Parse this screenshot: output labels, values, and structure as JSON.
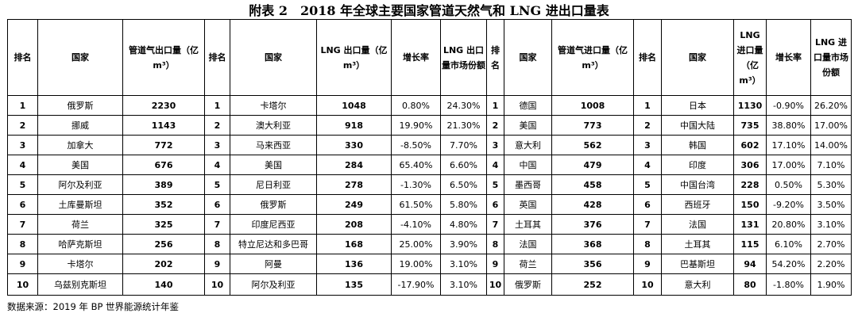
{
  "title": "附表 2　2018 年全球主要国家管道天然气和 LNG 进出口量表",
  "headers": {
    "rank": "排名",
    "country": "国家",
    "pipe_export": "管道气出口量（亿 m³）",
    "lng_export": "LNG 出口量（亿 m³）",
    "growth": "增长率",
    "lng_export_share": "LNG 出口量市场份额",
    "pipe_import": "管道气进口量（亿 m³）",
    "lng_import": "LNG 进口量（亿 m³）",
    "lng_import_share": "LNG 进口量市场份额"
  },
  "rows": [
    {
      "r1": "1",
      "c1": "俄罗斯",
      "v1": "2230",
      "r2": "1",
      "c2": "卡塔尔",
      "v2": "1048",
      "g2": "0.80%",
      "s2": "24.30%",
      "r3": "1",
      "c3": "德国",
      "v3": "1008",
      "r4": "1",
      "c4": "日本",
      "v4": "1130",
      "g4": "-0.90%",
      "s4": "26.20%"
    },
    {
      "r1": "2",
      "c1": "挪威",
      "v1": "1143",
      "r2": "2",
      "c2": "澳大利亚",
      "v2": "918",
      "g2": "19.90%",
      "s2": "21.30%",
      "r3": "2",
      "c3": "美国",
      "v3": "773",
      "r4": "2",
      "c4": "中国大陆",
      "v4": "735",
      "g4": "38.80%",
      "s4": "17.00%"
    },
    {
      "r1": "3",
      "c1": "加拿大",
      "v1": "772",
      "r2": "3",
      "c2": "马来西亚",
      "v2": "330",
      "g2": "-8.50%",
      "s2": "7.70%",
      "r3": "3",
      "c3": "意大利",
      "v3": "562",
      "r4": "3",
      "c4": "韩国",
      "v4": "602",
      "g4": "17.10%",
      "s4": "14.00%"
    },
    {
      "r1": "4",
      "c1": "美国",
      "v1": "676",
      "r2": "4",
      "c2": "美国",
      "v2": "284",
      "g2": "65.40%",
      "s2": "6.60%",
      "r3": "4",
      "c3": "中国",
      "v3": "479",
      "r4": "4",
      "c4": "印度",
      "v4": "306",
      "g4": "17.00%",
      "s4": "7.10%"
    },
    {
      "r1": "5",
      "c1": "阿尔及利亚",
      "v1": "389",
      "r2": "5",
      "c2": "尼日利亚",
      "v2": "278",
      "g2": "-1.30%",
      "s2": "6.50%",
      "r3": "5",
      "c3": "墨西哥",
      "v3": "458",
      "r4": "5",
      "c4": "中国台湾",
      "v4": "228",
      "g4": "0.50%",
      "s4": "5.30%"
    },
    {
      "r1": "6",
      "c1": "土库曼斯坦",
      "v1": "352",
      "r2": "6",
      "c2": "俄罗斯",
      "v2": "249",
      "g2": "61.50%",
      "s2": "5.80%",
      "r3": "6",
      "c3": "英国",
      "v3": "428",
      "r4": "6",
      "c4": "西班牙",
      "v4": "150",
      "g4": "-9.20%",
      "s4": "3.50%"
    },
    {
      "r1": "7",
      "c1": "荷兰",
      "v1": "325",
      "r2": "7",
      "c2": "印度尼西亚",
      "v2": "208",
      "g2": "-4.10%",
      "s2": "4.80%",
      "r3": "7",
      "c3": "土耳其",
      "v3": "376",
      "r4": "7",
      "c4": "法国",
      "v4": "131",
      "g4": "20.80%",
      "s4": "3.10%"
    },
    {
      "r1": "8",
      "c1": "哈萨克斯坦",
      "v1": "256",
      "r2": "8",
      "c2": "特立尼达和多巴哥",
      "v2": "168",
      "g2": "25.00%",
      "s2": "3.90%",
      "r3": "8",
      "c3": "法国",
      "v3": "368",
      "r4": "8",
      "c4": "土耳其",
      "v4": "115",
      "g4": "6.10%",
      "s4": "2.70%"
    },
    {
      "r1": "9",
      "c1": "卡塔尔",
      "v1": "202",
      "r2": "9",
      "c2": "阿曼",
      "v2": "136",
      "g2": "19.00%",
      "s2": "3.10%",
      "r3": "9",
      "c3": "荷兰",
      "v3": "356",
      "r4": "9",
      "c4": "巴基斯坦",
      "v4": "94",
      "g4": "54.20%",
      "s4": "2.20%"
    },
    {
      "r1": "10",
      "c1": "乌兹别克斯坦",
      "v1": "140",
      "r2": "10",
      "c2": "阿尔及利亚",
      "v2": "135",
      "g2": "-17.90%",
      "s2": "3.10%",
      "r3": "10",
      "c3": "俄罗斯",
      "v3": "252",
      "r4": "10",
      "c4": "意大利",
      "v4": "80",
      "g4": "-1.80%",
      "s4": "1.90%"
    }
  ],
  "source": "数据来源：2019 年 BP 世界能源统计年鉴"
}
